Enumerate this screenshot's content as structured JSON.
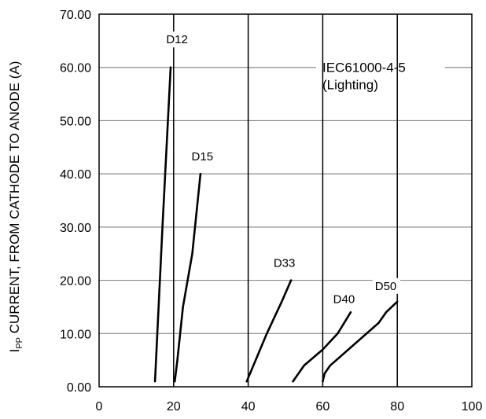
{
  "chart_data": {
    "type": "line",
    "title": "",
    "xlabel": "",
    "ylabel": {
      "prefix": "I",
      "subscript": "PP",
      "rest": " CURRENT, FROM CATHODE TO ANODE (A)"
    },
    "xlim": [
      0,
      100
    ],
    "ylim": [
      0,
      70
    ],
    "x_ticks": [
      "0",
      "20",
      "40",
      "60",
      "80",
      "100"
    ],
    "y_ticks": [
      "0.00",
      "10.00",
      "20.00",
      "30.00",
      "40.00",
      "50.00",
      "60.00",
      "70.00"
    ],
    "vertical_gridlines": [
      20,
      40,
      60,
      80
    ],
    "horizontal_gridlines": [
      10,
      20,
      30,
      40,
      50,
      60
    ],
    "annotation": [
      "IEC61000-4-5",
      "(Lighting)"
    ],
    "series": [
      {
        "name": "D12",
        "x": [
          15.0,
          17.0,
          19.2
        ],
        "y": [
          1,
          30,
          60
        ]
      },
      {
        "name": "D15",
        "x": [
          20.3,
          21.0,
          22.5,
          25.0,
          27.2
        ],
        "y": [
          1,
          5,
          15,
          25,
          40
        ]
      },
      {
        "name": "D33",
        "x": [
          39.6,
          45.0,
          49.0,
          51.5
        ],
        "y": [
          1,
          10,
          16,
          20
        ]
      },
      {
        "name": "D40",
        "x": [
          52.0,
          55.0,
          60.0,
          64.0,
          67.5
        ],
        "y": [
          1,
          4,
          7,
          10,
          14
        ]
      },
      {
        "name": "D50",
        "x": [
          60.0,
          60.5,
          62.0,
          75.0,
          77.0,
          80.0
        ],
        "y": [
          1,
          2.5,
          4,
          12,
          14,
          16
        ]
      }
    ]
  }
}
